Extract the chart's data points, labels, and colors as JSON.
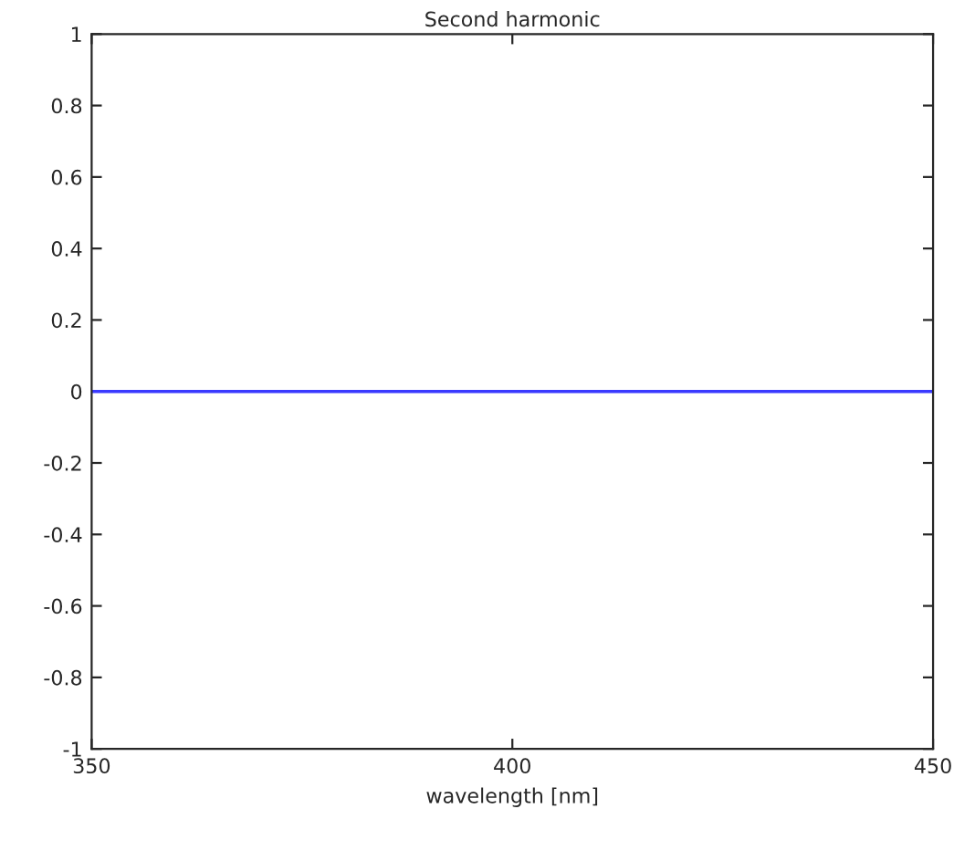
{
  "chart_data": {
    "type": "line",
    "title": "Second harmonic",
    "xlabel": "wavelength [nm]",
    "x": [
      350,
      450
    ],
    "series": [
      {
        "color": "#3a3aff",
        "values": [
          0,
          0
        ]
      }
    ],
    "xlim": [
      350,
      450
    ],
    "xticks": [
      350,
      400,
      450
    ],
    "ylim": [
      -1,
      1
    ],
    "yticks": [
      -1,
      -0.8,
      -0.6,
      -0.4,
      -0.2,
      0,
      0.2,
      0.4,
      0.6,
      0.8,
      1
    ],
    "grid": false,
    "legend": false
  }
}
